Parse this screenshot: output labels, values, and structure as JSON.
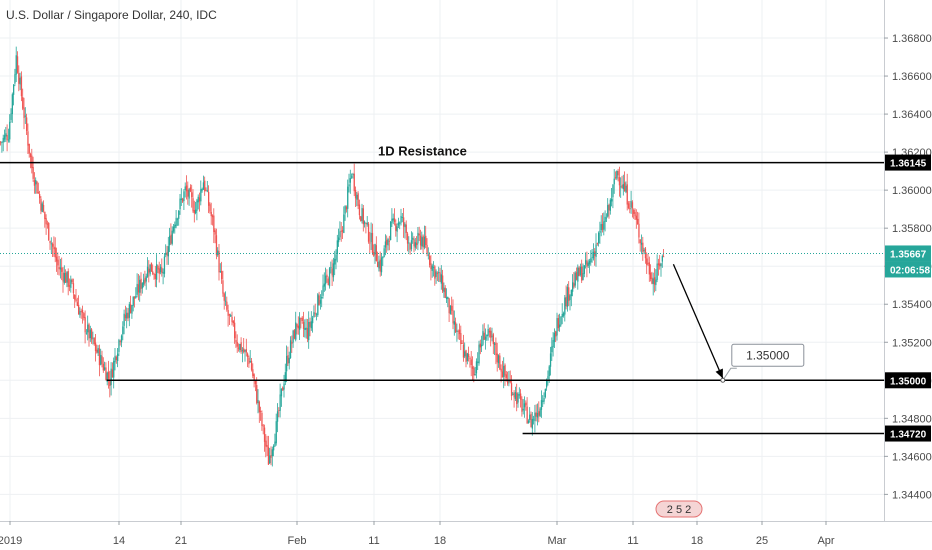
{
  "header": {
    "title": "U.S. Dollar / Singapore Dollar, 240, IDC"
  },
  "colors": {
    "up": "#26a69a",
    "down": "#ef5350",
    "current_line": "#26a69a",
    "line": "#000000"
  },
  "chart_data": {
    "type": "candlestick",
    "title": "U.S. Dollar / Singapore Dollar, 240, IDC",
    "x_ticks": [
      "2019",
      "14",
      "21",
      "Feb",
      "11",
      "18",
      "Mar",
      "11",
      "18",
      "25",
      "Apr"
    ],
    "y_ticks": [
      "1.36800",
      "1.36600",
      "1.36400",
      "1.36200",
      "1.36000",
      "1.35800",
      "1.35600",
      "1.35400",
      "1.35200",
      "1.35000",
      "1.34800",
      "1.34600",
      "1.34400"
    ],
    "ylim": [
      1.3426,
      1.37
    ],
    "grid": true,
    "anchors_close": [
      [
        0,
        1.3625
      ],
      [
        6,
        1.363
      ],
      [
        12,
        1.367
      ],
      [
        18,
        1.364
      ],
      [
        24,
        1.3612
      ],
      [
        34,
        1.3585
      ],
      [
        44,
        1.356
      ],
      [
        54,
        1.355
      ],
      [
        64,
        1.353
      ],
      [
        74,
        1.3515
      ],
      [
        84,
        1.35
      ],
      [
        94,
        1.353
      ],
      [
        104,
        1.3545
      ],
      [
        114,
        1.356
      ],
      [
        124,
        1.3555
      ],
      [
        134,
        1.3585
      ],
      [
        142,
        1.36
      ],
      [
        150,
        1.359
      ],
      [
        156,
        1.3605
      ],
      [
        164,
        1.358
      ],
      [
        172,
        1.354
      ],
      [
        182,
        1.352
      ],
      [
        192,
        1.351
      ],
      [
        200,
        1.348
      ],
      [
        206,
        1.3458
      ],
      [
        212,
        1.3475
      ],
      [
        220,
        1.351
      ],
      [
        228,
        1.353
      ],
      [
        236,
        1.3525
      ],
      [
        246,
        1.3545
      ],
      [
        256,
        1.356
      ],
      [
        264,
        1.3585
      ],
      [
        270,
        1.361
      ],
      [
        276,
        1.359
      ],
      [
        284,
        1.3575
      ],
      [
        292,
        1.356
      ],
      [
        300,
        1.358
      ],
      [
        308,
        1.3585
      ],
      [
        316,
        1.357
      ],
      [
        324,
        1.3575
      ],
      [
        332,
        1.356
      ],
      [
        340,
        1.355
      ],
      [
        348,
        1.353
      ],
      [
        356,
        1.3515
      ],
      [
        364,
        1.3505
      ],
      [
        372,
        1.3525
      ],
      [
        378,
        1.352
      ],
      [
        386,
        1.3505
      ],
      [
        394,
        1.3495
      ],
      [
        402,
        1.3485
      ],
      [
        408,
        1.3478
      ],
      [
        414,
        1.3485
      ],
      [
        420,
        1.35
      ],
      [
        428,
        1.353
      ],
      [
        436,
        1.3545
      ],
      [
        444,
        1.3555
      ],
      [
        452,
        1.356
      ],
      [
        460,
        1.3575
      ],
      [
        468,
        1.359
      ],
      [
        474,
        1.361
      ],
      [
        480,
        1.36
      ],
      [
        486,
        1.359
      ],
      [
        492,
        1.3575
      ],
      [
        498,
        1.356
      ],
      [
        503,
        1.3552
      ],
      [
        507,
        1.3562
      ],
      [
        510,
        1.3565
      ]
    ],
    "current_price": {
      "value": 1.35667,
      "label": "1.35667",
      "countdown": "02:06:58"
    },
    "horizontal_levels": [
      {
        "label": "1.36145",
        "value": 1.36145,
        "x_from": 0,
        "annotation": "1D Resistance"
      },
      {
        "label": "1.35000",
        "value": 1.35,
        "x_from": 82
      },
      {
        "label": "1.34720",
        "value": 1.3472,
        "x_from": 402
      }
    ],
    "arrow": {
      "x_from": 518,
      "y_from": 1.3561,
      "x_to": 556,
      "y_to": 1.3501
    },
    "callout": {
      "label": "1.35000",
      "x": 556,
      "y": 1.35
    }
  },
  "footer": {
    "events_badge": "2 5 2"
  }
}
